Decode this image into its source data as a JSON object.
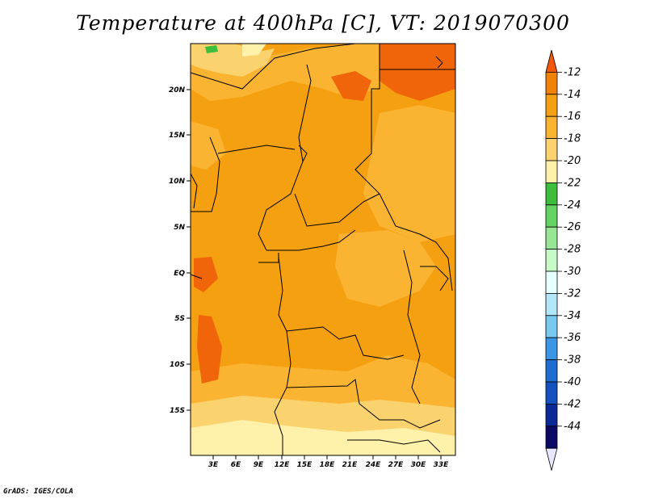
{
  "title": "Temperature at 400hPa [C], VT: 2019070300",
  "credit": "GrADS: IGES/COLA",
  "map": {
    "lat_labels": [
      "20N",
      "15N",
      "10N",
      "5N",
      "EQ",
      "5S",
      "10S",
      "15S"
    ],
    "lon_labels": [
      "3E",
      "6E",
      "9E",
      "12E",
      "15E",
      "18E",
      "21E",
      "24E",
      "27E",
      "30E",
      "33E"
    ],
    "fill_colors": {
      "minus12_to_minus14": "#f0640a",
      "minus14_to_minus16": "#f5a010",
      "minus16_to_minus18": "#fab432",
      "minus18_to_minus20": "#fad26e",
      "minus20_to_minus22": "#fff0aa",
      "minus22_to_minus24": "#3cbe3c"
    }
  },
  "colorbar": {
    "labels": [
      "-12",
      "-14",
      "-16",
      "-18",
      "-20",
      "-22",
      "-24",
      "-26",
      "-28",
      "-30",
      "-32",
      "-34",
      "-36",
      "-38",
      "-40",
      "-42",
      "-44"
    ],
    "colors": [
      "#f05a0a",
      "#f0820a",
      "#f5a012",
      "#fab432",
      "#fad26e",
      "#fff0aa",
      "#3cbe3c",
      "#64d264",
      "#96e696",
      "#c8fac8",
      "#e6ffff",
      "#b4e6fa",
      "#78c8f0",
      "#3c96e6",
      "#1e6ed2",
      "#1450be",
      "#0a2896",
      "#0a0a64",
      "#e6e6ff"
    ]
  }
}
